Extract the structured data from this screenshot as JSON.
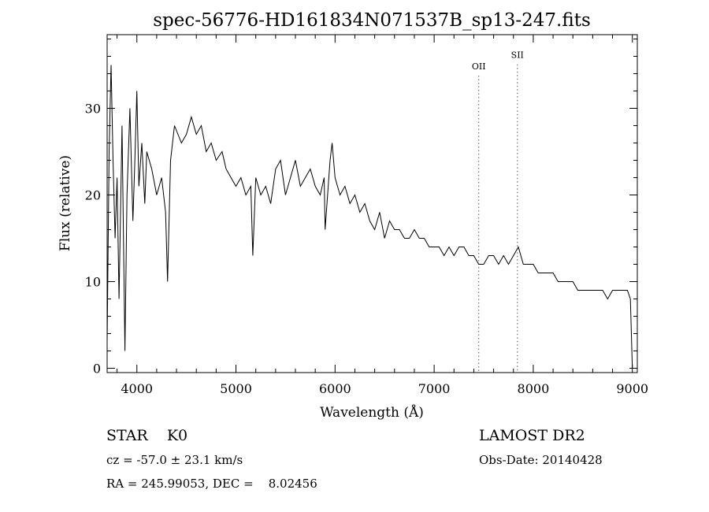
{
  "chart_data": {
    "type": "line",
    "title": "spec-56776-HD161834N071537B_sp13-247.fits",
    "xlabel": "Wavelength (Å)",
    "ylabel": "Flux (relative)",
    "xlim": [
      3700,
      9050
    ],
    "ylim": [
      -0.5,
      38.5
    ],
    "xticks": [
      4000,
      5000,
      6000,
      7000,
      8000,
      9000
    ],
    "yticks": [
      0,
      10,
      20,
      30
    ],
    "grid": false,
    "annotations": [
      {
        "label": "OII",
        "x": 7450,
        "y": 34.5
      },
      {
        "label": "SII",
        "x": 7840,
        "y": 35.8
      }
    ],
    "series": [
      {
        "x": [
          3700,
          3720,
          3740,
          3760,
          3780,
          3800,
          3820,
          3850,
          3880,
          3900,
          3930,
          3960,
          3980,
          4000,
          4020,
          4050,
          4080,
          4100,
          4150,
          4200,
          4250,
          4290,
          4310,
          4340,
          4380,
          4450,
          4500,
          4550,
          4600,
          4650,
          4700,
          4750,
          4800,
          4860,
          4900,
          4950,
          5000,
          5050,
          5100,
          5150,
          5170,
          5200,
          5250,
          5300,
          5350,
          5400,
          5450,
          5500,
          5550,
          5600,
          5650,
          5700,
          5750,
          5800,
          5850,
          5890,
          5900,
          5950,
          5970,
          6000,
          6050,
          6100,
          6150,
          6200,
          6250,
          6300,
          6350,
          6400,
          6450,
          6500,
          6550,
          6600,
          6650,
          6700,
          6750,
          6800,
          6850,
          6900,
          6950,
          7000,
          7050,
          7100,
          7150,
          7200,
          7250,
          7300,
          7350,
          7400,
          7450,
          7500,
          7550,
          7600,
          7650,
          7700,
          7750,
          7800,
          7850,
          7900,
          7950,
          8000,
          8050,
          8100,
          8150,
          8200,
          8250,
          8300,
          8350,
          8400,
          8450,
          8500,
          8550,
          8600,
          8650,
          8700,
          8750,
          8800,
          8850,
          8900,
          8950,
          8980,
          9000
        ],
        "y": [
          3,
          25,
          35,
          24,
          15,
          22,
          8,
          28,
          2,
          20,
          30,
          17,
          24,
          32,
          21,
          26,
          19,
          25,
          23,
          20,
          22,
          18,
          10,
          24,
          28,
          26,
          27,
          29,
          27,
          28,
          25,
          26,
          24,
          25,
          23,
          22,
          21,
          22,
          20,
          21,
          13,
          22,
          20,
          21,
          19,
          23,
          24,
          20,
          22,
          24,
          21,
          22,
          23,
          21,
          20,
          22,
          16,
          24,
          26,
          22,
          20,
          21,
          19,
          20,
          18,
          19,
          17,
          16,
          18,
          15,
          17,
          16,
          16,
          15,
          15,
          16,
          15,
          15,
          14,
          14,
          14,
          13,
          14,
          13,
          14,
          14,
          13,
          13,
          12,
          12,
          13,
          13,
          12,
          13,
          12,
          13,
          14,
          12,
          12,
          12,
          11,
          11,
          11,
          11,
          10,
          10,
          10,
          10,
          9,
          9,
          9,
          9,
          9,
          9,
          8,
          9,
          9,
          9,
          9,
          8,
          0
        ]
      }
    ]
  },
  "info": {
    "object": "STAR    K0",
    "survey": "LAMOST DR2",
    "redshift": "cz = -57.0 ± 23.1 km/s",
    "obs_date": "Obs-Date: 20140428",
    "coords": "RA = 245.99053, DEC =    8.02456"
  }
}
